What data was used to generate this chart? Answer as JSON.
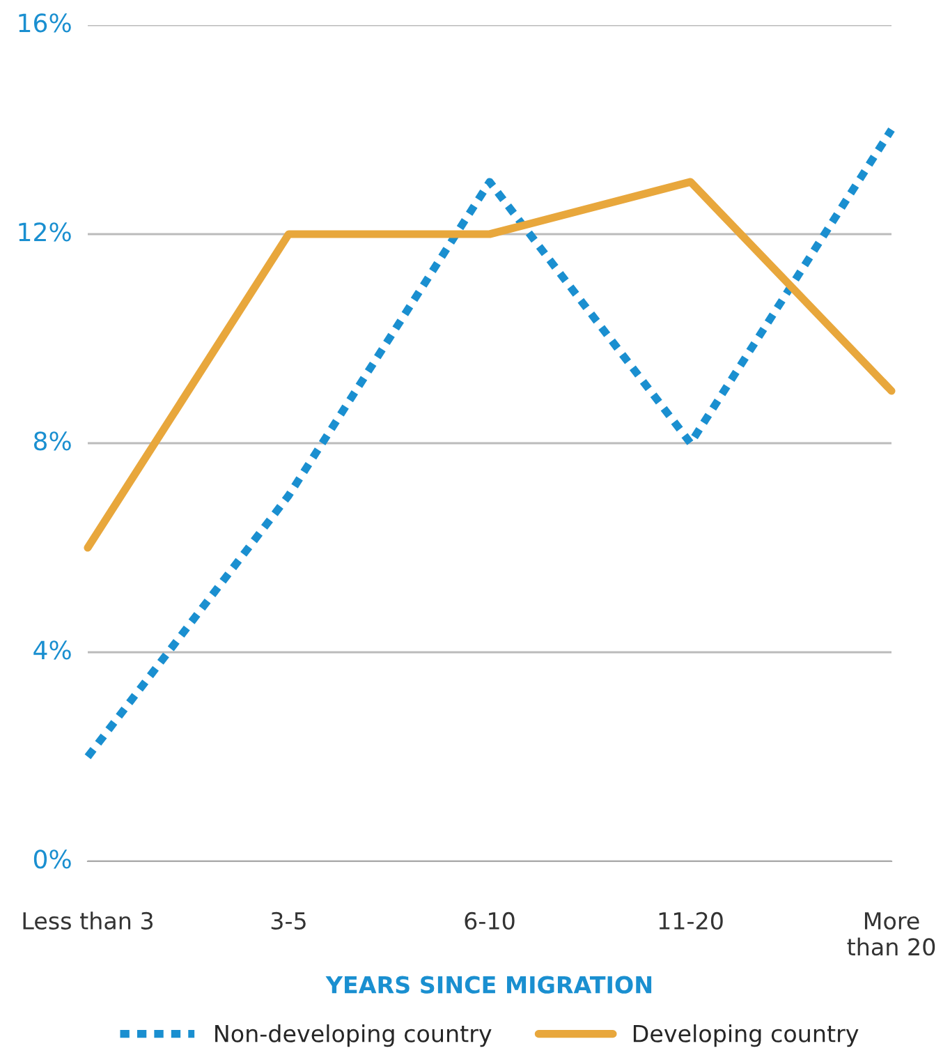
{
  "chart_data": {
    "type": "line",
    "xlabel": "YEARS SINCE MIGRATION",
    "categories": [
      "Less than 3",
      "3-5",
      "6-10",
      "11-20",
      "More\nthan 20"
    ],
    "series": [
      {
        "name": "Non-developing country",
        "color": "#1a8fd0",
        "values": [
          2,
          7,
          13,
          8,
          14
        ],
        "line_style": "dotted"
      },
      {
        "name": "Developing country",
        "color": "#e8a73c",
        "values": [
          6,
          12,
          12,
          13,
          9
        ],
        "line_style": "solid"
      }
    ],
    "ylim": [
      0,
      16
    ],
    "yticks": [
      {
        "value": 0,
        "label": "0%"
      },
      {
        "value": 4,
        "label": "4%"
      },
      {
        "value": 8,
        "label": "8%"
      },
      {
        "value": 12,
        "label": "12%"
      },
      {
        "value": 16,
        "label": "16%"
      }
    ],
    "grid": "y",
    "legend": "bottom",
    "marker": "none"
  }
}
